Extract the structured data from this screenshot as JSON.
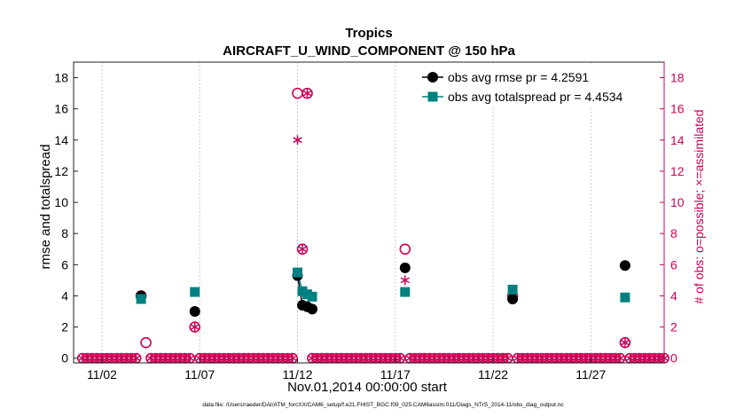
{
  "chart_data": {
    "type": "scatter",
    "title": "Tropics",
    "subtitle": "AIRCRAFT_U_WIND_COMPONENT @ 150 hPa",
    "xlabel": "Nov.01,2014 00:00:00 start",
    "ylabel": "rmse and totalspread",
    "y2label": "# of obs: o=possible; ×=assimilated",
    "footer": "data file: /Users/raeder/DAI/ATM_forcXX/CAM6_setup/f.e21.FHIST_BGC.f09_025.CAM6assim.011/Diags_NTrS_2014-11/obs_diag_output.nc",
    "xlim": [
      0.55,
      30.75
    ],
    "ylim": [
      -0.3,
      19
    ],
    "y2lim": [
      -0.3,
      19
    ],
    "x_ticks": [
      {
        "value": 2,
        "label": "11/02"
      },
      {
        "value": 7,
        "label": "11/07"
      },
      {
        "value": 12,
        "label": "11/12"
      },
      {
        "value": 17,
        "label": "11/17"
      },
      {
        "value": 22,
        "label": "11/22"
      },
      {
        "value": 27,
        "label": "11/27"
      }
    ],
    "y_ticks": [
      0,
      2,
      4,
      6,
      8,
      10,
      12,
      14,
      16,
      18
    ],
    "y2_ticks": [
      0,
      2,
      4,
      6,
      8,
      10,
      12,
      14,
      16,
      18
    ],
    "grid": "vertical dotted at x ticks",
    "legend_position": "top-right",
    "colors": {
      "rmse": "#000000",
      "totalspread": "#008080",
      "obs": "#cc0055"
    },
    "series": [
      {
        "name": "obs avg rmse pr = 4.2591",
        "axis": "left",
        "marker": "circle",
        "points": [
          [
            4.0,
            4.0
          ],
          [
            6.75,
            3.0
          ],
          [
            12.0,
            5.3
          ],
          [
            12.25,
            3.4
          ],
          [
            12.5,
            3.3
          ],
          [
            12.75,
            3.15
          ],
          [
            17.5,
            5.8
          ],
          [
            23.0,
            3.8
          ],
          [
            28.75,
            5.95
          ]
        ]
      },
      {
        "name": "obs avg totalspread pr = 4.4534",
        "axis": "left",
        "marker": "square",
        "points": [
          [
            4.0,
            3.8
          ],
          [
            6.75,
            4.25
          ],
          [
            12.0,
            5.5
          ],
          [
            12.25,
            4.3
          ],
          [
            12.5,
            4.1
          ],
          [
            12.75,
            3.95
          ],
          [
            17.5,
            4.25
          ],
          [
            23.0,
            4.4
          ],
          [
            28.75,
            3.9
          ]
        ]
      },
      {
        "name": "possible obs count",
        "axis": "right",
        "marker": "open-circle",
        "points": [
          [
            4.0,
            4
          ],
          [
            4.25,
            1
          ],
          [
            6.75,
            2
          ],
          [
            12.0,
            17
          ],
          [
            12.25,
            7
          ],
          [
            12.5,
            17
          ],
          [
            17.5,
            7
          ],
          [
            23.0,
            4
          ],
          [
            28.75,
            1
          ]
        ]
      },
      {
        "name": "assimilated obs count",
        "axis": "right",
        "marker": "asterisk",
        "points": [
          [
            4.0,
            4
          ],
          [
            6.75,
            2
          ],
          [
            12.0,
            14
          ],
          [
            12.25,
            7
          ],
          [
            12.5,
            17
          ],
          [
            17.5,
            5
          ],
          [
            23.0,
            4
          ],
          [
            28.75,
            1
          ]
        ]
      }
    ],
    "zero_obs_times_spacing": 0.25
  }
}
